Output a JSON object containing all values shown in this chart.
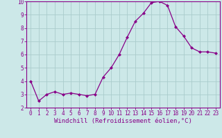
{
  "x": [
    0,
    1,
    2,
    3,
    4,
    5,
    6,
    7,
    8,
    9,
    10,
    11,
    12,
    13,
    14,
    15,
    16,
    17,
    18,
    19,
    20,
    21,
    22,
    23
  ],
  "y": [
    4.0,
    2.5,
    3.0,
    3.2,
    3.0,
    3.1,
    3.0,
    2.9,
    3.0,
    4.3,
    5.0,
    6.0,
    7.3,
    8.5,
    9.1,
    9.9,
    10.0,
    9.7,
    8.1,
    7.4,
    6.5,
    6.2,
    6.2,
    6.1
  ],
  "line_color": "#880088",
  "marker": "D",
  "marker_size": 2.0,
  "bg_color": "#cce8e8",
  "grid_color": "#aacccc",
  "spine_color": "#880088",
  "xlabel": "Windchill (Refroidissement éolien,°C)",
  "xlabel_color": "#880088",
  "ylim": [
    2,
    10
  ],
  "xlim_min": -0.5,
  "xlim_max": 23.5,
  "yticks": [
    2,
    3,
    4,
    5,
    6,
    7,
    8,
    9,
    10
  ],
  "xticks": [
    0,
    1,
    2,
    3,
    4,
    5,
    6,
    7,
    8,
    9,
    10,
    11,
    12,
    13,
    14,
    15,
    16,
    17,
    18,
    19,
    20,
    21,
    22,
    23
  ],
  "tick_label_color": "#880088",
  "tick_label_size": 5.5,
  "xlabel_size": 6.5,
  "linewidth": 0.9
}
